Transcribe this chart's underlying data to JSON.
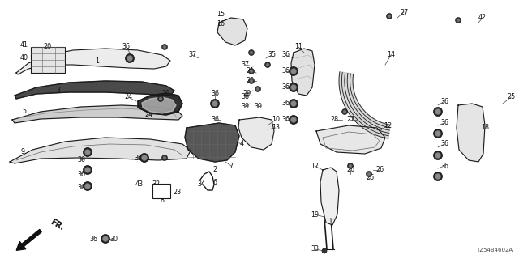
{
  "diagram_code": "TZ54B4602A",
  "background": "#ffffff",
  "figsize": [
    6.4,
    3.2
  ],
  "dpi": 100,
  "xlim": [
    0,
    640
  ],
  "ylim": [
    0,
    320
  ]
}
